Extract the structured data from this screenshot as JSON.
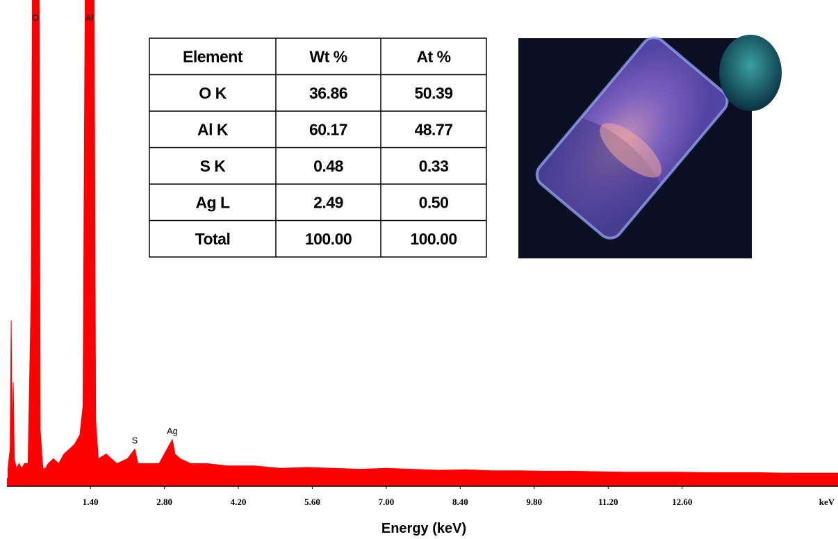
{
  "chart_data": {
    "type": "area",
    "x_label": "Energy (keV)",
    "x_unit": "keV",
    "color": "#ff0000",
    "xlim": [
      -0.18,
      15.55
    ],
    "ylim": [
      0,
      100
    ],
    "xticks": [
      {
        "value": 1.4,
        "label": "1.40"
      },
      {
        "value": 2.8,
        "label": "2.80"
      },
      {
        "value": 4.2,
        "label": "4.20"
      },
      {
        "value": 5.6,
        "label": "5.60"
      },
      {
        "value": 7.0,
        "label": "7.00"
      },
      {
        "value": 8.4,
        "label": "8.40"
      },
      {
        "value": 9.8,
        "label": "9.80"
      },
      {
        "value": 11.2,
        "label": "11.20"
      },
      {
        "value": 12.6,
        "label": "12.60"
      }
    ],
    "x": [
      -0.16,
      -0.12,
      -0.1,
      -0.08,
      -0.06,
      -0.04,
      0.0,
      0.05,
      0.1,
      0.15,
      0.22,
      0.28,
      0.3,
      0.43,
      0.45,
      0.5,
      0.55,
      0.6,
      0.7,
      0.8,
      0.9,
      1.0,
      1.1,
      1.2,
      1.26,
      1.3,
      1.47,
      1.5,
      1.55,
      1.7,
      1.9,
      2.1,
      2.24,
      2.3,
      2.5,
      2.7,
      2.9,
      2.95,
      3.0,
      3.1,
      3.3,
      3.6,
      4.0,
      4.5,
      5.0,
      5.5,
      6.0,
      6.5,
      7.0,
      7.5,
      8.0,
      8.5,
      9.0,
      9.5,
      10.0,
      10.5,
      11.0,
      11.5,
      12.0,
      12.5,
      13.0,
      13.5,
      14.0,
      14.5,
      15.0,
      15.55
    ],
    "values": [
      2,
      6,
      33,
      8,
      20,
      4,
      2,
      3,
      2,
      3,
      3,
      40,
      100,
      100,
      10,
      2,
      2,
      3,
      4,
      3,
      5,
      6,
      7,
      9,
      15,
      100,
      100,
      12,
      4,
      5,
      3,
      4,
      6,
      3,
      3,
      3,
      7,
      8,
      5,
      4,
      3,
      3,
      2.5,
      2.5,
      2,
      2.2,
      2,
      1.8,
      2,
      1.8,
      1.6,
      1.7,
      1.5,
      1.5,
      1.4,
      1.4,
      1.3,
      1.2,
      1.2,
      1.2,
      1.1,
      1.1,
      1.1,
      1.0,
      1.0,
      1.0
    ],
    "annotations": [
      {
        "text": "O",
        "x": 0.36,
        "y": 100
      },
      {
        "text": "Al",
        "x": 1.38,
        "y": 100
      },
      {
        "text": "S",
        "x": 2.24,
        "y": 6
      },
      {
        "text": "Ag",
        "x": 2.95,
        "y": 8
      }
    ],
    "table": {
      "columns": [
        "Element",
        "Wt %",
        "At %"
      ],
      "rows": [
        [
          "O K",
          "36.86",
          "50.39"
        ],
        [
          "Al K",
          "60.17",
          "48.77"
        ],
        [
          "S K",
          "0.48",
          "0.33"
        ],
        [
          "Ag L",
          "2.49",
          "0.50"
        ],
        [
          "Total",
          "100.00",
          "100.00"
        ]
      ]
    }
  }
}
